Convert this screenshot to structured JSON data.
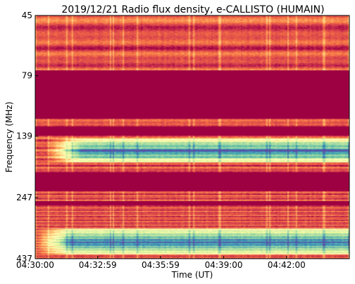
{
  "chart_data": {
    "type": "heatmap",
    "title": "2019/12/21  Radio flux density, e-CALLISTO (HUMAIN)",
    "xlabel": "Time (UT)",
    "ylabel": "Frequency (MHz)",
    "x_ticks": [
      "04:30:00",
      "04:32:59",
      "04:35:59",
      "04:39:00",
      "04:42:00"
    ],
    "y_ticks": [
      "45",
      "79",
      "139",
      "247",
      "437"
    ],
    "xlim": [
      "04:30:00",
      "04:45:00"
    ],
    "ylim": [
      45,
      437
    ],
    "y_scale": "log",
    "y_inverted": true,
    "colormap": [
      "#9e0142",
      "#d53e4f",
      "#f46d43",
      "#fdae61",
      "#fee08b",
      "#ffffbf",
      "#e6f598",
      "#abdda4",
      "#66c2a5",
      "#3288bd",
      "#5e4fa2"
    ],
    "grid": false,
    "features": [
      {
        "kind": "masked_band",
        "freq_range": [
          75,
          118
        ]
      },
      {
        "kind": "masked_band",
        "freq_range": [
          127,
          138
        ]
      },
      {
        "kind": "masked_band",
        "freq_range": [
          195,
          232
        ]
      },
      {
        "kind": "masked_band",
        "freq_range": [
          255,
          265
        ]
      },
      {
        "kind": "enhanced_band",
        "freq_range": [
          142,
          178
        ],
        "onset": "04:31:50"
      },
      {
        "kind": "enhanced_band",
        "freq_range": [
          330,
          420
        ],
        "onset": "04:31:20"
      }
    ]
  }
}
